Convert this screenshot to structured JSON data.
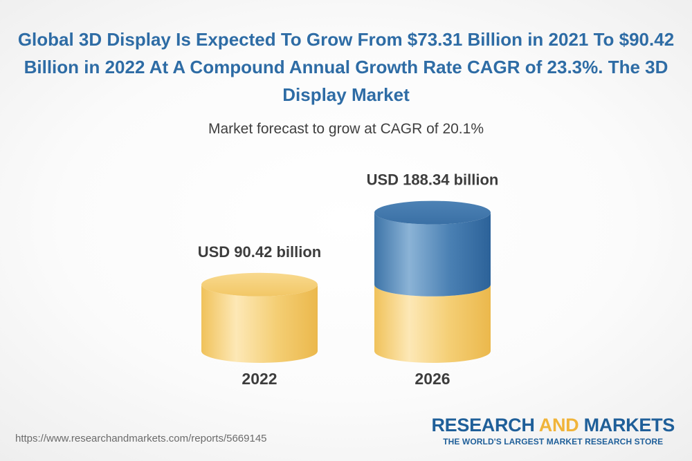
{
  "header": {
    "title": "Global 3D Display Is Expected To Grow From $73.31 Billion in 2021 To $90.42 Billion in 2022 At A Compound Annual Growth Rate CAGR of 23.3%. The 3D Display Market",
    "subtitle": "Market forecast to grow at CAGR of 20.1%"
  },
  "chart_data": {
    "type": "bar",
    "style": "3d-cylinder",
    "title": "Market forecast to grow at CAGR of 20.1%",
    "categories": [
      "2022",
      "2026"
    ],
    "values": [
      90.42,
      188.34
    ],
    "value_labels": [
      "USD 90.42 billion",
      "USD 188.34 billion"
    ],
    "unit": "USD billion",
    "xlabel": "",
    "ylabel": "",
    "ylim": [
      0,
      200
    ],
    "grid": false,
    "legend": "none",
    "colors": {
      "base": "#f2c660",
      "growth": "#3f77ab"
    }
  },
  "footer": {
    "url": "https://www.researchandmarkets.com/reports/5669145",
    "brand_research": "RESEARCH",
    "brand_and": "AND",
    "brand_markets": "MARKETS",
    "tagline": "THE WORLD'S LARGEST MARKET RESEARCH STORE"
  }
}
